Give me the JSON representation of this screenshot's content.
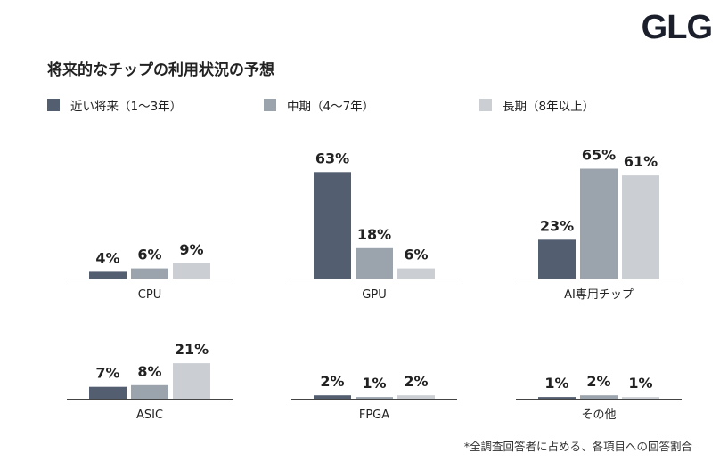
{
  "brand": {
    "logo_text": "GLG"
  },
  "chart_data": {
    "type": "bar",
    "title": "将来的なチップの利用状況の予想",
    "footnote": "*全調査回答者に占める、各項目への回答割合",
    "value_suffix": "%",
    "ylim": [
      0,
      100
    ],
    "series": [
      {
        "name": "近い将来（1～3年）",
        "color": "#535f70"
      },
      {
        "name": "中期（4～7年）",
        "color": "#9ba3ad"
      },
      {
        "name": "長期（8年以上）",
        "color": "#cbcfd4"
      }
    ],
    "groups": [
      {
        "category": "CPU",
        "values": [
          4,
          6,
          9
        ]
      },
      {
        "category": "GPU",
        "values": [
          63,
          18,
          6
        ]
      },
      {
        "category": "AI専用チップ",
        "values": [
          23,
          65,
          61
        ]
      },
      {
        "category": "ASIC",
        "values": [
          7,
          8,
          21
        ]
      },
      {
        "category": "FPGA",
        "values": [
          2,
          1,
          2
        ]
      },
      {
        "category": "その他",
        "values": [
          1,
          2,
          1
        ]
      }
    ]
  }
}
